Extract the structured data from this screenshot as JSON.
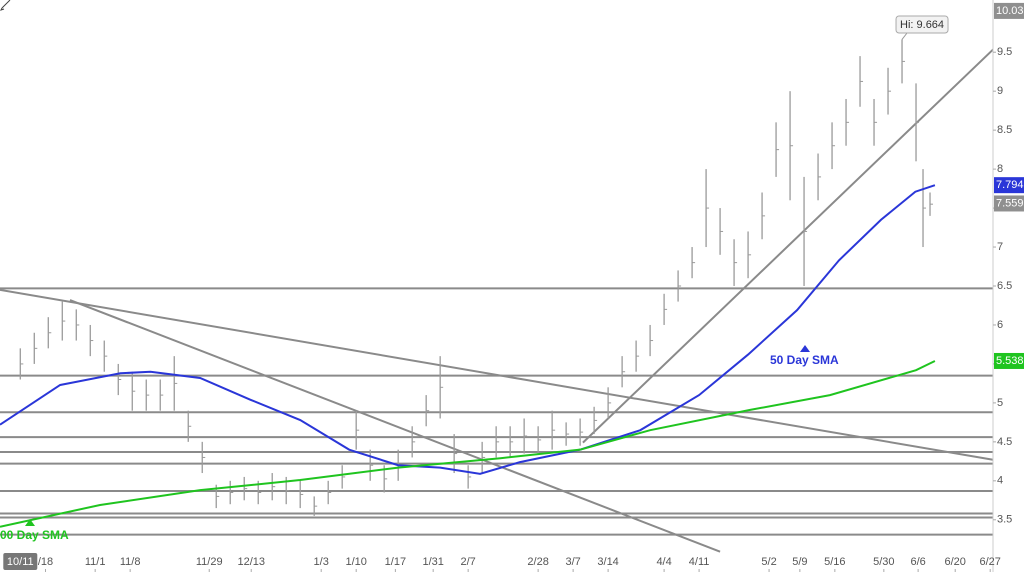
{
  "chart_data": {
    "type": "ohlc",
    "xlim": [
      -2.9,
      139
    ],
    "ylim": [
      2.83,
      10.17
    ],
    "yticks": [
      3.5,
      4,
      4.5,
      5,
      5.5,
      6,
      6.5,
      7,
      7.5,
      8,
      8.5,
      9,
      9.5
    ],
    "xticks": [
      {
        "value": 0,
        "label": "10/11"
      },
      {
        "value": 3.6,
        "label": "/18"
      },
      {
        "value": 10.7,
        "label": "11/1"
      },
      {
        "value": 15.7,
        "label": "11/8"
      },
      {
        "value": 27,
        "label": "11/29"
      },
      {
        "value": 33,
        "label": "12/13"
      },
      {
        "value": 43,
        "label": "1/3"
      },
      {
        "value": 48,
        "label": "1/10"
      },
      {
        "value": 53.6,
        "label": "1/17"
      },
      {
        "value": 59,
        "label": "1/31"
      },
      {
        "value": 64,
        "label": "2/7"
      },
      {
        "value": 74,
        "label": "2/28"
      },
      {
        "value": 79,
        "label": "3/7"
      },
      {
        "value": 84,
        "label": "3/14"
      },
      {
        "value": 92,
        "label": "4/4"
      },
      {
        "value": 97,
        "label": "4/11"
      },
      {
        "value": 107,
        "label": "5/2"
      },
      {
        "value": 111.4,
        "label": "5/9"
      },
      {
        "value": 116.4,
        "label": "5/16"
      },
      {
        "value": 123.4,
        "label": "5/30"
      },
      {
        "value": 128.3,
        "label": "6/6"
      },
      {
        "value": 133.6,
        "label": "6/20"
      },
      {
        "value": 138.6,
        "label": "6/27"
      }
    ],
    "bar_color": "#9a9a9a",
    "x": [
      0,
      2,
      4,
      6,
      8,
      10,
      12,
      14,
      16,
      18,
      20,
      22,
      24,
      26,
      28,
      30,
      32,
      34,
      36,
      38,
      40,
      42,
      44,
      46,
      48,
      50,
      52,
      54,
      56,
      58,
      60,
      62,
      64,
      66,
      68,
      70,
      72,
      74,
      76,
      78,
      80,
      82,
      84,
      86,
      88,
      90,
      92,
      94,
      96,
      98,
      100,
      102,
      104,
      106,
      108,
      110,
      112,
      114,
      116,
      118,
      120,
      122,
      124,
      126,
      128,
      129,
      130
    ],
    "high": [
      5.7,
      5.9,
      6.1,
      6.3,
      6.2,
      6.0,
      5.8,
      5.5,
      5.4,
      5.3,
      5.3,
      5.6,
      4.9,
      4.5,
      3.95,
      4.0,
      4.05,
      4.0,
      4.1,
      4.05,
      4.0,
      3.8,
      4.0,
      4.2,
      4.9,
      4.4,
      4.2,
      4.4,
      4.7,
      5.1,
      5.6,
      4.6,
      4.2,
      4.5,
      4.7,
      4.7,
      4.8,
      4.7,
      4.9,
      4.75,
      4.8,
      4.95,
      5.2,
      5.6,
      5.8,
      6.0,
      6.4,
      6.7,
      7.0,
      8.0,
      7.5,
      7.1,
      7.2,
      7.7,
      8.6,
      9.0,
      7.9,
      8.2,
      8.6,
      8.9,
      9.45,
      8.9,
      9.3,
      9.664,
      9.1,
      8.0,
      7.7
    ],
    "low": [
      5.3,
      5.5,
      5.7,
      5.8,
      5.8,
      5.6,
      5.4,
      5.1,
      4.9,
      4.9,
      4.9,
      4.9,
      4.5,
      4.1,
      3.65,
      3.7,
      3.75,
      3.7,
      3.75,
      3.7,
      3.65,
      3.55,
      3.7,
      3.9,
      4.4,
      4.0,
      3.85,
      4.0,
      4.3,
      4.7,
      4.8,
      4.1,
      3.9,
      4.1,
      4.3,
      4.3,
      4.35,
      4.35,
      4.4,
      4.45,
      4.45,
      4.6,
      4.8,
      5.2,
      5.4,
      5.6,
      6.0,
      6.3,
      6.6,
      7.0,
      6.9,
      6.5,
      6.6,
      7.1,
      7.9,
      7.6,
      6.5,
      7.6,
      8.0,
      8.3,
      8.8,
      8.3,
      8.7,
      9.1,
      8.1,
      7.0,
      7.4
    ],
    "series": [
      {
        "name": "50 Day SMA",
        "color": "#2a36d8",
        "x": [
          -2.9,
          5.7,
          14.3,
          18.6,
          25.7,
          32.9,
          40,
          47,
          54,
          60,
          65.7,
          71.4,
          80,
          88.6,
          97,
          104,
          111,
          117,
          123,
          127.9,
          130.7
        ],
        "values": [
          4.72,
          5.23,
          5.38,
          5.4,
          5.32,
          5.04,
          4.78,
          4.4,
          4.2,
          4.17,
          4.09,
          4.24,
          4.4,
          4.65,
          5.1,
          5.62,
          6.19,
          6.83,
          7.35,
          7.71,
          7.794
        ]
      },
      {
        "name": "00 Day SMA",
        "color": "#1fc41f",
        "x": [
          -2.9,
          11.4,
          25.7,
          40,
          54,
          68.6,
          80,
          90,
          104.3,
          115.7,
          128,
          130.7
        ],
        "values": [
          3.41,
          3.69,
          3.88,
          4.01,
          4.17,
          4.29,
          4.4,
          4.65,
          4.91,
          5.1,
          5.42,
          5.538
        ]
      }
    ],
    "levels": [
      6.47,
      5.35,
      4.88,
      4.56,
      4.37,
      4.22,
      3.87,
      3.58,
      3.53,
      3.31
    ],
    "trendlines": [
      [
        [
          -2.9,
          6.45
        ],
        [
          139,
          4.27
        ]
      ],
      [
        [
          7.1,
          6.32
        ],
        [
          100,
          3.09
        ]
      ],
      [
        [
          80.4,
          4.49
        ],
        [
          139.3,
          9.56
        ]
      ]
    ],
    "line_color": "#8a8a8a",
    "axis_markers": [
      {
        "value": 10.03,
        "color": "#8f8f8f"
      },
      {
        "value": 7.794,
        "color": "#2a36d8"
      },
      {
        "value": 7.559,
        "color": "#8f8f8f"
      },
      {
        "value": 5.538,
        "color": "#1fc41f"
      }
    ],
    "hi_label": "Hi: 9.664"
  }
}
